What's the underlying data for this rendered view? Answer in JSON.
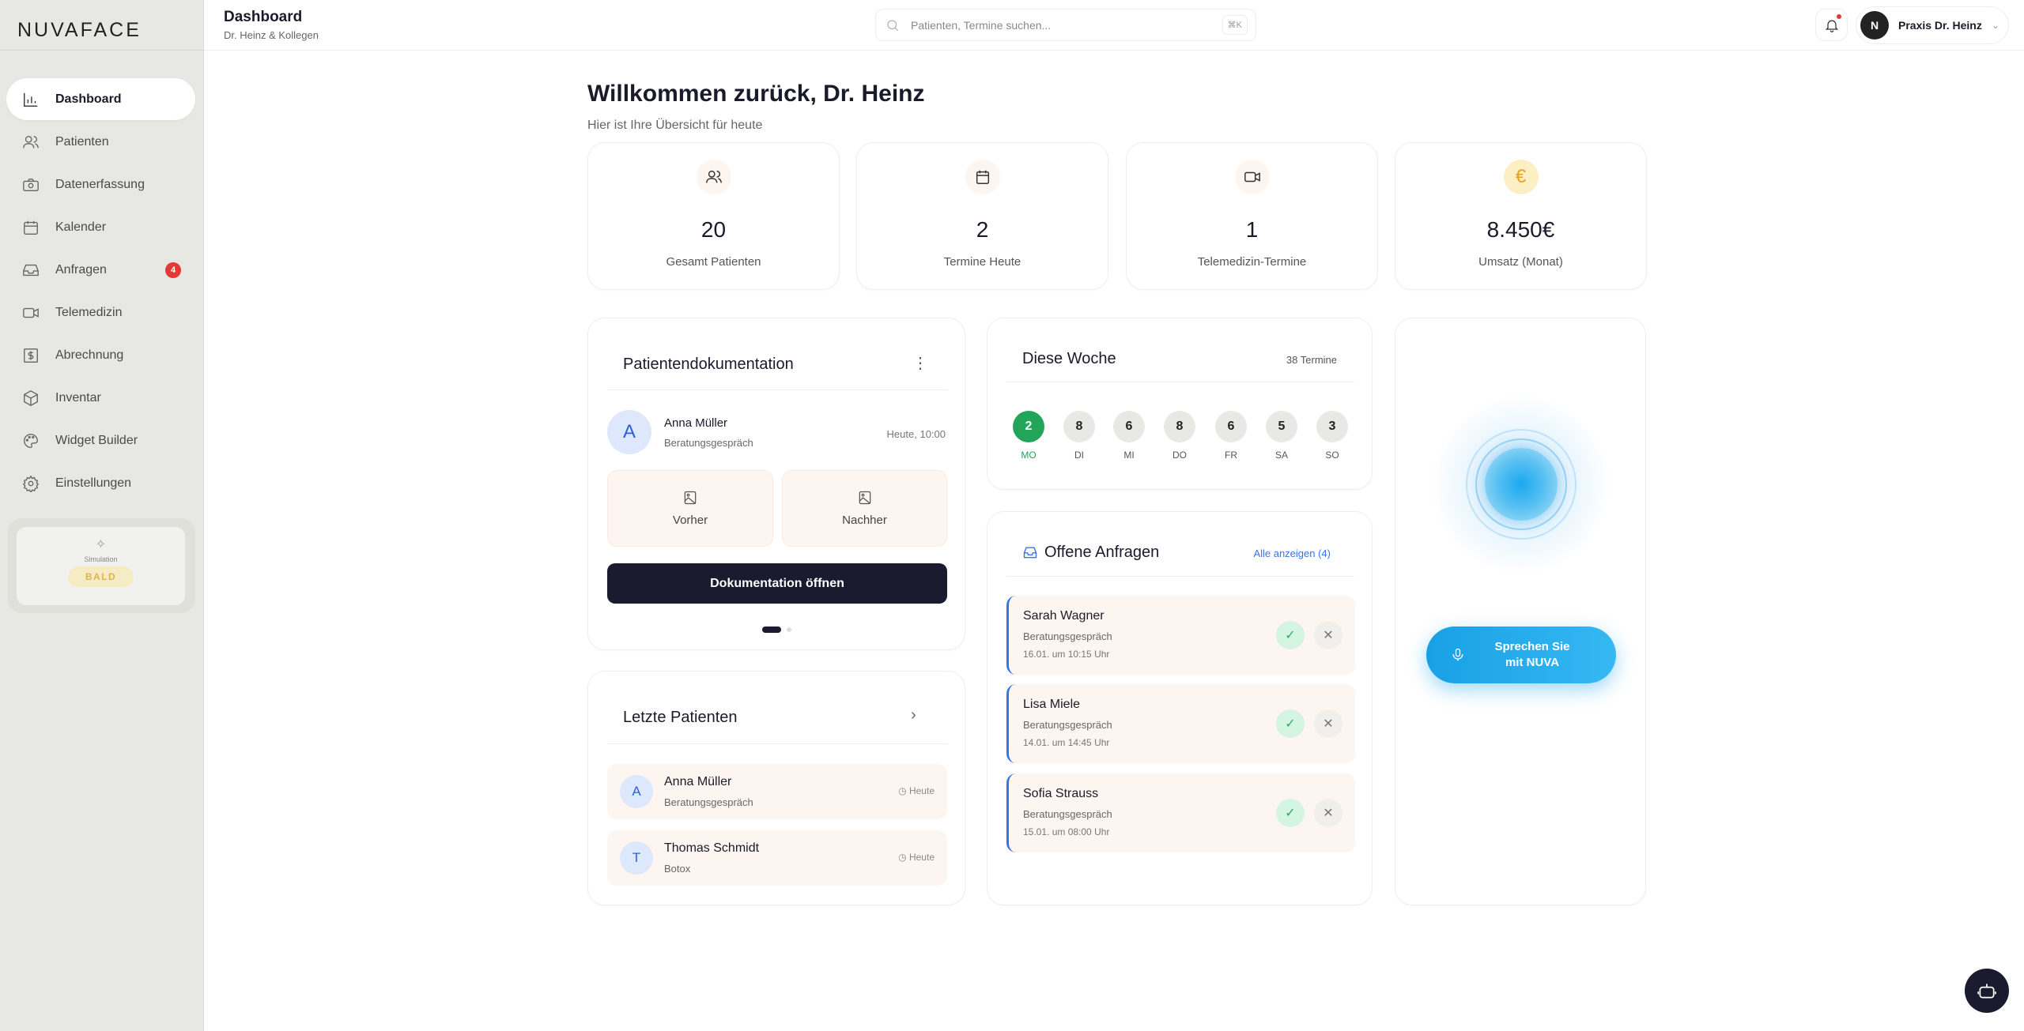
{
  "brand": "NUVAFACE",
  "sidebar": {
    "items": [
      {
        "label": "Dashboard",
        "icon": "bar-chart-icon"
      },
      {
        "label": "Patienten",
        "icon": "users-icon"
      },
      {
        "label": "Datenerfassung",
        "icon": "camera-icon"
      },
      {
        "label": "Kalender",
        "icon": "calendar-icon"
      },
      {
        "label": "Anfragen",
        "icon": "inbox-icon",
        "badge": "4"
      },
      {
        "label": "Telemedizin",
        "icon": "video-icon"
      },
      {
        "label": "Abrechnung",
        "icon": "dollar-receipt-icon"
      },
      {
        "label": "Inventar",
        "icon": "box-icon"
      },
      {
        "label": "Widget Builder",
        "icon": "palette-icon"
      },
      {
        "label": "Einstellungen",
        "icon": "gear-icon"
      }
    ],
    "simulation": {
      "label": "Simulation",
      "badge": "BALD"
    }
  },
  "header": {
    "title": "Dashboard",
    "subtitle": "Dr. Heinz & Kollegen",
    "search_placeholder": "Patienten, Termine suchen...",
    "shortcut": "⌘K",
    "profile_initial": "N",
    "profile_name": "Praxis Dr. Heinz"
  },
  "welcome": {
    "title": "Willkommen zurück, Dr. Heinz",
    "subtitle": "Hier ist Ihre Übersicht für heute"
  },
  "stats": [
    {
      "value": "20",
      "label": "Gesamt Patienten",
      "icon": "users-icon"
    },
    {
      "value": "2",
      "label": "Termine Heute",
      "icon": "calendar-icon"
    },
    {
      "value": "1",
      "label": "Telemedizin-Termine",
      "icon": "video-icon"
    },
    {
      "value": "8.450€",
      "label": "Umsatz (Monat)",
      "icon": "euro-icon",
      "accent": "#e8a020"
    }
  ],
  "doc": {
    "title": "Patientendokumentation",
    "initial": "A",
    "name": "Anna Müller",
    "type": "Beratungsgespräch",
    "time": "Heute, 10:00",
    "before": "Vorher",
    "after": "Nachher",
    "button": "Dokumentation öffnen"
  },
  "week": {
    "title": "Diese Woche",
    "count": "38 Termine",
    "days": [
      {
        "n": "2",
        "d": "MO",
        "active": true
      },
      {
        "n": "8",
        "d": "DI"
      },
      {
        "n": "6",
        "d": "MI"
      },
      {
        "n": "8",
        "d": "DO"
      },
      {
        "n": "6",
        "d": "FR"
      },
      {
        "n": "5",
        "d": "SA"
      },
      {
        "n": "3",
        "d": "SO"
      }
    ]
  },
  "requests": {
    "title": "Offene Anfragen",
    "link": "Alle anzeigen (4)",
    "items": [
      {
        "name": "Sarah Wagner",
        "type": "Beratungsgespräch",
        "date": "16.01. um 10:15 Uhr"
      },
      {
        "name": "Lisa Miele",
        "type": "Beratungsgespräch",
        "date": "14.01. um 14:45 Uhr"
      },
      {
        "name": "Sofia Strauss",
        "type": "Beratungsgespräch",
        "date": "15.01. um 08:00 Uhr"
      }
    ]
  },
  "voice": {
    "button": "Sprechen Sie mit NUVA",
    "accent": "#1ea7e8"
  },
  "recent": {
    "title": "Letzte Patienten",
    "items": [
      {
        "initial": "A",
        "name": "Anna Müller",
        "type": "Beratungsgespräch",
        "time": "Heute"
      },
      {
        "initial": "T",
        "name": "Thomas Schmidt",
        "type": "Botox",
        "time": "Heute"
      }
    ]
  }
}
